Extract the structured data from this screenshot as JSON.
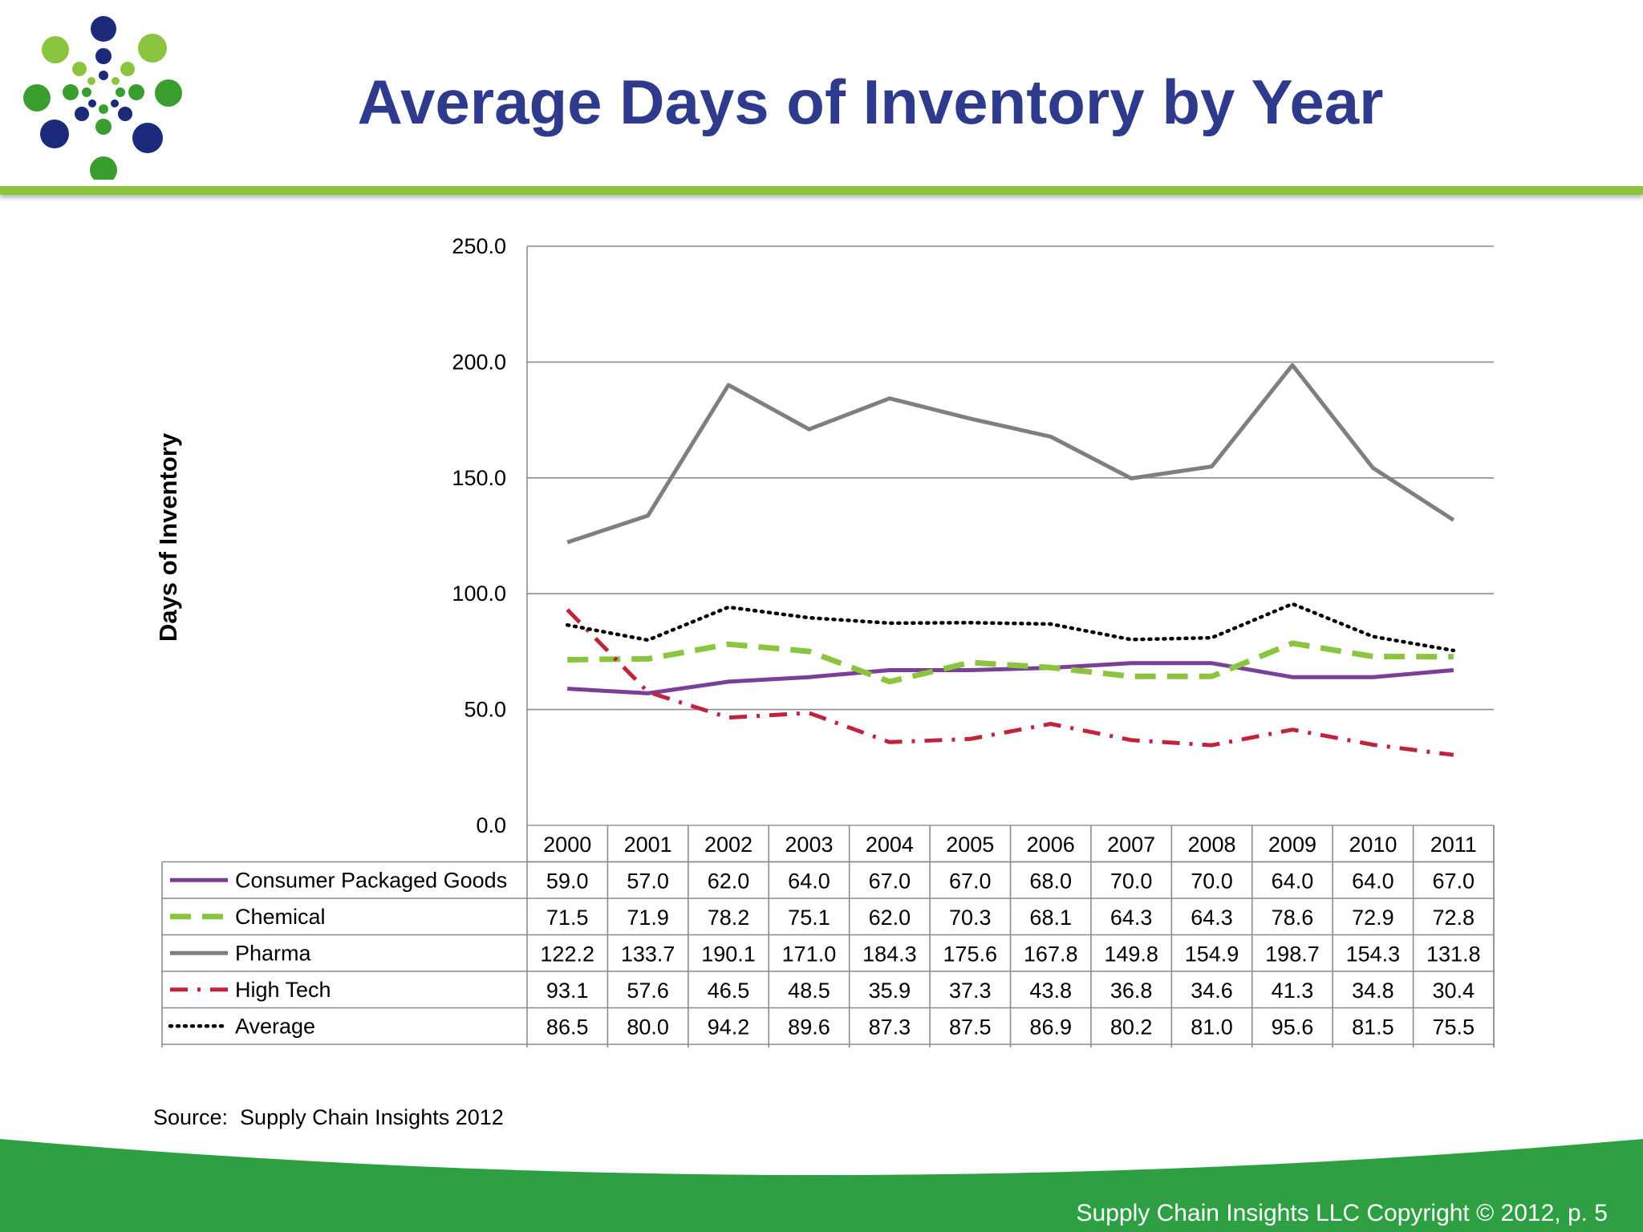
{
  "slide": {
    "title": "Average Days of Inventory by Year",
    "source": "Source:  Supply Chain Insights 2012",
    "copyright": "Supply Chain Insights LLC Copyright © 2012, p. 5",
    "colors": {
      "title": "#2e3a8c",
      "accent_green": "#8bc53f",
      "footer_green": "#2ea043",
      "logo_navy": "#1b2a7a"
    }
  },
  "chart_data": {
    "type": "line",
    "ylabel": "Days of Inventory",
    "xlabel": "",
    "ylim": [
      0,
      250
    ],
    "yticks": [
      "0.0",
      "50.0",
      "100.0",
      "150.0",
      "200.0",
      "250.0"
    ],
    "grid": true,
    "legend": "data-table-below",
    "categories": [
      "2000",
      "2001",
      "2002",
      "2003",
      "2004",
      "2005",
      "2006",
      "2007",
      "2008",
      "2009",
      "2010",
      "2011"
    ],
    "series": [
      {
        "name": "Consumer Packaged Goods",
        "values": [
          59.0,
          57.0,
          62.0,
          64.0,
          67.0,
          67.0,
          68.0,
          70.0,
          70.0,
          64.0,
          64.0,
          67.0
        ],
        "labels": [
          "59.0",
          "57.0",
          "62.0",
          "64.0",
          "67.0",
          "67.0",
          "68.0",
          "70.0",
          "70.0",
          "64.0",
          "64.0",
          "67.0"
        ],
        "color": "#7b3f98",
        "style": "solid"
      },
      {
        "name": "Chemical",
        "values": [
          71.5,
          71.9,
          78.2,
          75.1,
          62.0,
          70.3,
          68.1,
          64.3,
          64.3,
          78.6,
          72.9,
          72.8
        ],
        "labels": [
          "71.5",
          "71.9",
          "78.2",
          "75.1",
          "62.0",
          "70.3",
          "68.1",
          "64.3",
          "64.3",
          "78.6",
          "72.9",
          "72.8"
        ],
        "color": "#8bc53f",
        "style": "dashed"
      },
      {
        "name": "Pharma",
        "values": [
          122.2,
          133.7,
          190.1,
          171.0,
          184.3,
          175.6,
          167.8,
          149.8,
          154.9,
          198.7,
          154.3,
          131.8
        ],
        "labels": [
          "122.2",
          "133.7",
          "190.1",
          "171.0",
          "184.3",
          "175.6",
          "167.8",
          "149.8",
          "154.9",
          "198.7",
          "154.3",
          "131.8"
        ],
        "color": "#7f7f7f",
        "style": "solid"
      },
      {
        "name": "High Tech",
        "values": [
          93.1,
          57.6,
          46.5,
          48.5,
          35.9,
          37.3,
          43.8,
          36.8,
          34.6,
          41.3,
          34.8,
          30.4
        ],
        "labels": [
          "93.1",
          "57.6",
          "46.5",
          "48.5",
          "35.9",
          "37.3",
          "43.8",
          "36.8",
          "34.6",
          "41.3",
          "34.8",
          "30.4"
        ],
        "color": "#c0243c",
        "style": "dash-dot"
      },
      {
        "name": "Average",
        "values": [
          86.5,
          80.0,
          94.2,
          89.6,
          87.3,
          87.5,
          86.9,
          80.2,
          81.0,
          95.6,
          81.5,
          75.5
        ],
        "labels": [
          "86.5",
          "80.0",
          "94.2",
          "89.6",
          "87.3",
          "87.5",
          "86.9",
          "80.2",
          "81.0",
          "95.6",
          "81.5",
          "75.5"
        ],
        "color": "#000000",
        "style": "dotted"
      }
    ]
  }
}
